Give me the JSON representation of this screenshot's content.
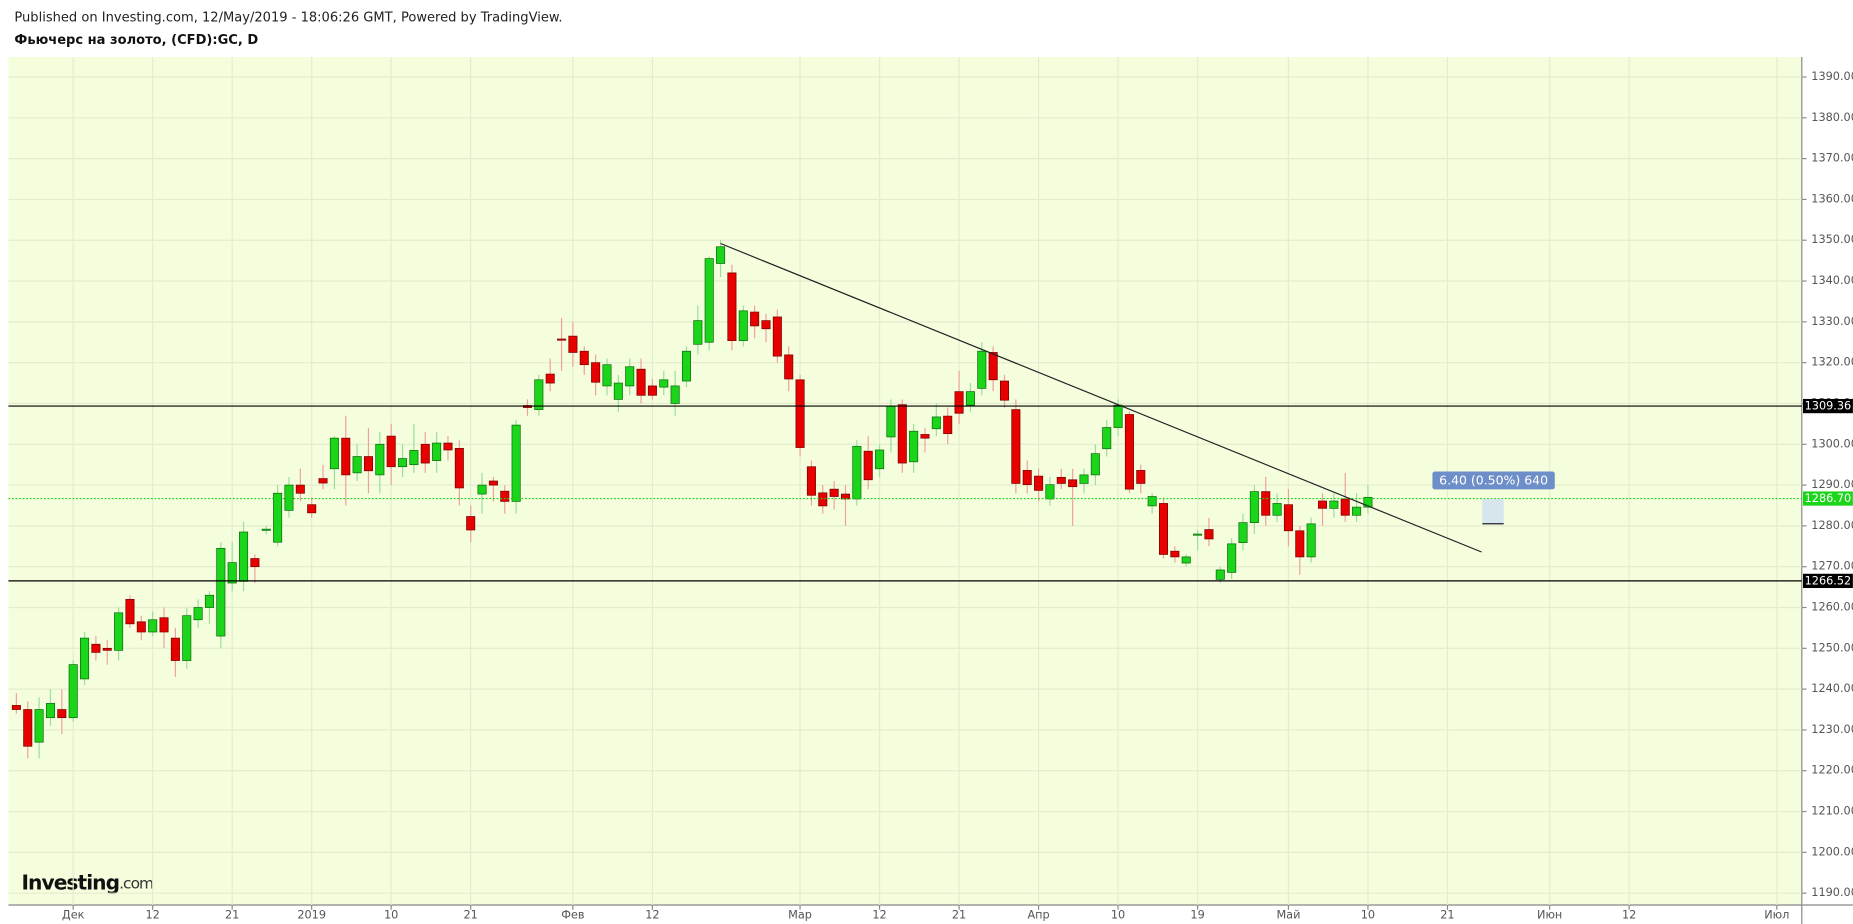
{
  "chart_data": {
    "type": "candlestick",
    "subtitle": "Published on Investing.com, 12/May/2019 - 18:06:26 GMT, Powered by TradingView.",
    "title": "Фьючерс на золото, (CFD):GC, D",
    "watermark": [
      "Investing",
      ".com"
    ],
    "up_color": "#1ad51a",
    "down_color": "#e60000",
    "background": "#f4fddc",
    "grid": true,
    "x": [
      0,
      1,
      2,
      3,
      4,
      5,
      6,
      7,
      8,
      9,
      10,
      11,
      12,
      13,
      14,
      15,
      16,
      17,
      18,
      19,
      20,
      21,
      22,
      23,
      24,
      25,
      26,
      27,
      28,
      29,
      30,
      31,
      32,
      33,
      34,
      35,
      36,
      37,
      38,
      39,
      40,
      41,
      42,
      43,
      44,
      45,
      46,
      47,
      48,
      49,
      50,
      51,
      52,
      53,
      54,
      55,
      56,
      57,
      58,
      59,
      60,
      61,
      62,
      63,
      64,
      65,
      66,
      67,
      68,
      69,
      70,
      71,
      72,
      73,
      74,
      75,
      76,
      77,
      78,
      79,
      80,
      81,
      82,
      83,
      84,
      85,
      86,
      87,
      88,
      89,
      90,
      91,
      92,
      93,
      94,
      95,
      96,
      97,
      98,
      99,
      100,
      101,
      102,
      103,
      104,
      105,
      106,
      107,
      108,
      109,
      110,
      111,
      112,
      113,
      114,
      115,
      116,
      117,
      118,
      119
    ],
    "open": [
      1236,
      1235,
      1227,
      1233,
      1235,
      1233,
      1242.5,
      1251,
      1250,
      1249.5,
      1262,
      1256.5,
      1254,
      1257.5,
      1252.5,
      1247,
      1257,
      1260,
      1253,
      1266,
      1266.4,
      1272,
      1279,
      1276,
      1283.8,
      1290,
      1285.2,
      1291.6,
      1294,
      1301.5,
      1293,
      1297,
      1292.5,
      1302,
      1294.5,
      1295,
      1300,
      1296,
      1300.3,
      1299,
      1282.3,
      1287.8,
      1291,
      1288.5,
      1286,
      1309.5,
      1308.5,
      1317.2,
      1325.8,
      1326.5,
      1322.8,
      1320,
      1314.3,
      1311,
      1314.3,
      1318.4,
      1314.3,
      1314,
      1310,
      1315.5,
      1324.5,
      1325,
      1344.3,
      1342,
      1325.4,
      1332.4,
      1330.3,
      1331.2,
      1321.9,
      1315.8,
      1294.5,
      1288.1,
      1289,
      1287.8,
      1286.6,
      1298.3,
      1294,
      1301.8,
      1309.7,
      1295.7,
      1302.4,
      1303.8,
      1306.9,
      1312.9,
      1309.6,
      1313.7,
      1322.5,
      1315.5,
      1308.5,
      1293.6,
      1292.2,
      1286.6,
      1291.9,
      1291.3,
      1290.4,
      1292.5,
      1298.9,
      1304.1,
      1307.3,
      1293.6,
      1284.9,
      1285.5,
      1273.8,
      1270.9,
      1278,
      1279.1,
      1266.9,
      1268.6,
      1275.9,
      1280.8,
      1288.4,
      1282.6,
      1285.2,
      1278.8,
      1272.4,
      1286.1,
      1284.3,
      1286.6,
      1282.6,
      1284.6
    ],
    "high": [
      1239,
      1237,
      1238,
      1240,
      1240,
      1247,
      1254,
      1253,
      1252,
      1260,
      1263,
      1258,
      1259,
      1260,
      1255,
      1260,
      1262,
      1264,
      1276,
      1276,
      1281,
      1273,
      1280,
      1290,
      1292,
      1294,
      1287,
      1295,
      1302,
      1307,
      1300,
      1304,
      1303,
      1305,
      1300,
      1305,
      1303,
      1303,
      1302,
      1301,
      1285,
      1293,
      1292,
      1290,
      1306,
      1311,
      1317,
      1321,
      1331,
      1330,
      1324,
      1322,
      1321,
      1317,
      1321,
      1321,
      1316,
      1318,
      1318,
      1324,
      1334,
      1346,
      1350,
      1344,
      1334,
      1334,
      1332,
      1333,
      1324,
      1317,
      1296,
      1290,
      1291,
      1290,
      1301,
      1302,
      1300,
      1311,
      1311,
      1305,
      1304,
      1310,
      1309,
      1318,
      1315,
      1325,
      1324,
      1317,
      1311,
      1296,
      1294,
      1292,
      1294,
      1294,
      1294,
      1300,
      1306,
      1311,
      1308,
      1295,
      1288,
      1287,
      1275,
      1273,
      1279,
      1282,
      1270,
      1277,
      1283,
      1290,
      1292,
      1288,
      1289,
      1280,
      1282,
      1288,
      1288,
      1293,
      1288,
      1290
    ],
    "low": [
      1234,
      1223,
      1223,
      1231,
      1229,
      1232,
      1241,
      1247,
      1246,
      1247,
      1255,
      1252,
      1253,
      1250,
      1243,
      1245,
      1255,
      1256,
      1250,
      1264,
      1264,
      1266,
      1278,
      1275,
      1282,
      1286,
      1282,
      1289,
      1289,
      1285,
      1291,
      1288,
      1288,
      1290,
      1292,
      1293,
      1293,
      1293,
      1296,
      1285,
      1276,
      1283,
      1286,
      1283,
      1283,
      1307,
      1307,
      1313,
      1318,
      1319,
      1317,
      1312,
      1312,
      1308,
      1312,
      1310,
      1311,
      1312,
      1307,
      1314,
      1322,
      1323,
      1341,
      1323,
      1324,
      1326,
      1325,
      1320,
      1313,
      1297,
      1285,
      1283,
      1284,
      1280,
      1285,
      1289,
      1292,
      1298,
      1293,
      1293,
      1298,
      1302,
      1300,
      1305,
      1308,
      1312,
      1313,
      1309,
      1288,
      1288,
      1286,
      1285,
      1289,
      1280,
      1288,
      1290,
      1297,
      1302,
      1288,
      1288,
      1283,
      1272,
      1271,
      1270,
      1274,
      1275,
      1266,
      1267,
      1274,
      1278,
      1280,
      1281,
      1275,
      1268,
      1271,
      1280,
      1282,
      1281,
      1281,
      1283
    ],
    "close": [
      1235,
      1226,
      1235,
      1236.5,
      1233,
      1246,
      1252.5,
      1249,
      1249.5,
      1258.7,
      1256,
      1254,
      1257,
      1254,
      1247,
      1258,
      1260,
      1263,
      1274.5,
      1271,
      1278.5,
      1270,
      1279.2,
      1288,
      1290,
      1288,
      1283.2,
      1290.5,
      1301.5,
      1292.5,
      1297,
      1293.5,
      1300,
      1294.5,
      1296.5,
      1298.5,
      1295.4,
      1300.3,
      1298.6,
      1289.3,
      1279,
      1290,
      1290,
      1286,
      1304.7,
      1309,
      1315.8,
      1315,
      1325.5,
      1322.5,
      1319.5,
      1315.2,
      1319.5,
      1315,
      1319,
      1312,
      1312,
      1315.8,
      1314.3,
      1322.8,
      1330.3,
      1345.5,
      1348.4,
      1325.4,
      1332.7,
      1329,
      1328.3,
      1321.6,
      1316,
      1299.2,
      1287.5,
      1284.9,
      1287.2,
      1286.6,
      1299.5,
      1291.3,
      1298.6,
      1309.4,
      1295.4,
      1303.2,
      1301.5,
      1306.7,
      1302.6,
      1307.6,
      1312.9,
      1322.8,
      1315.8,
      1310.8,
      1290.4,
      1290.1,
      1288.7,
      1290.1,
      1290.4,
      1289.6,
      1292.5,
      1297.7,
      1304.1,
      1309.6,
      1289,
      1290.4,
      1287.2,
      1273,
      1272.4,
      1272.4,
      1278,
      1276.8,
      1269.2,
      1275.6,
      1280.8,
      1288.4,
      1282.6,
      1285.5,
      1278.8,
      1272.4,
      1280.5,
      1284.3,
      1286.1,
      1282.6,
      1284.6,
      1287
    ],
    "xlim": [
      -0.7,
      157.2
    ],
    "xticks": [
      {
        "value": 5,
        "label": "Дек"
      },
      {
        "value": 12,
        "label": "12"
      },
      {
        "value": 19,
        "label": "21"
      },
      {
        "value": 26,
        "label": "2019"
      },
      {
        "value": 33,
        "label": "10"
      },
      {
        "value": 40,
        "label": "21"
      },
      {
        "value": 49,
        "label": "Фев"
      },
      {
        "value": 56,
        "label": "12"
      },
      {
        "value": 69,
        "label": "Мар"
      },
      {
        "value": 76,
        "label": "12"
      },
      {
        "value": 83,
        "label": "21"
      },
      {
        "value": 90,
        "label": "Апр"
      },
      {
        "value": 97,
        "label": "10"
      },
      {
        "value": 104,
        "label": "19"
      },
      {
        "value": 112,
        "label": "Май"
      },
      {
        "value": 119,
        "label": "10"
      },
      {
        "value": 126,
        "label": "21"
      },
      {
        "value": 135,
        "label": "Июн"
      },
      {
        "value": 142,
        "label": "12"
      },
      {
        "value": 155,
        "label": "Июл"
      }
    ],
    "ylim": [
      1187.1,
      1394.9
    ],
    "yticks": [
      {
        "value": 1190,
        "label": "1190.00"
      },
      {
        "value": 1200,
        "label": "1200.00"
      },
      {
        "value": 1210,
        "label": "1210.00"
      },
      {
        "value": 1220,
        "label": "1220.00"
      },
      {
        "value": 1230,
        "label": "1230.00"
      },
      {
        "value": 1240,
        "label": "1240.00"
      },
      {
        "value": 1250,
        "label": "1250.00"
      },
      {
        "value": 1260,
        "label": "1260.00"
      },
      {
        "value": 1270,
        "label": "1270.00"
      },
      {
        "value": 1280,
        "label": "1280.00"
      },
      {
        "value": 1290,
        "label": "1290.00"
      },
      {
        "value": 1300,
        "label": "1300.00"
      },
      {
        "value": 1310,
        "label": "1310.00"
      },
      {
        "value": 1320,
        "label": "1320.00"
      },
      {
        "value": 1330,
        "label": "1330.00"
      },
      {
        "value": 1340,
        "label": "1340.00"
      },
      {
        "value": 1350,
        "label": "1350.00"
      },
      {
        "value": 1360,
        "label": "1360.00"
      },
      {
        "value": 1370,
        "label": "1370.00"
      },
      {
        "value": 1380,
        "label": "1380.00"
      },
      {
        "value": 1390,
        "label": "1390.00"
      }
    ],
    "levels": [
      1309.36,
      1266.52
    ],
    "last_price": {
      "value": 1286.7,
      "label": "1286.70"
    },
    "trendline": {
      "x": [
        62,
        129
      ],
      "y": [
        1349.2,
        1273.6
      ]
    },
    "measure_label": "6.40 (0.50%) 640"
  }
}
